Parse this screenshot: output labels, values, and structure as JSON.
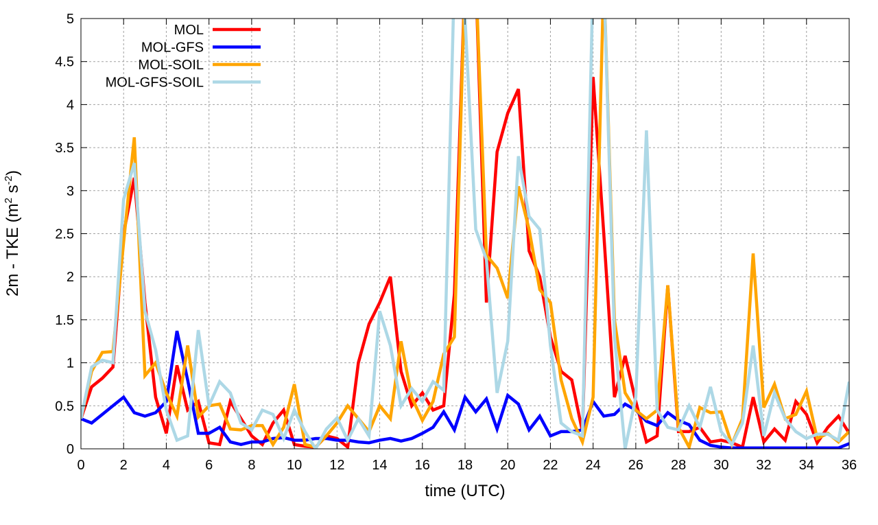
{
  "chart_data": {
    "type": "line",
    "title": "",
    "xlabel": "time (UTC)",
    "ylabel_main": "2m - TKE (m",
    "ylabel_sup1": "2",
    "ylabel_mid": " s",
    "ylabel_sup2": "-2",
    "ylabel_end": ")",
    "xlim": [
      0,
      36
    ],
    "ylim": [
      0,
      5
    ],
    "xticks": [
      0,
      2,
      4,
      6,
      8,
      10,
      12,
      14,
      16,
      18,
      20,
      22,
      24,
      26,
      28,
      30,
      32,
      34,
      36
    ],
    "xtick_labels": [
      "0",
      "2",
      "4",
      "6",
      "8",
      "10",
      "12",
      "14",
      "16",
      "18",
      "20",
      "22",
      "24",
      "26",
      "28",
      "30",
      "32",
      "34",
      "36"
    ],
    "yticks": [
      0,
      0.5,
      1,
      1.5,
      2,
      2.5,
      3,
      3.5,
      4,
      4.5,
      5
    ],
    "ytick_labels": [
      "0",
      "0.5",
      "1",
      "1.5",
      "2",
      "2.5",
      "3",
      "3.5",
      "4",
      "4.5",
      "5"
    ],
    "grid": true,
    "legend_position": "top-left",
    "x_step": 0.5,
    "series": [
      {
        "name": "MOL",
        "color": "#ff0000",
        "values": [
          0.35,
          0.72,
          0.82,
          0.95,
          2.5,
          3.15,
          1.7,
          0.6,
          0.18,
          0.97,
          0.45,
          0.55,
          0.07,
          0.05,
          0.55,
          0.35,
          0.15,
          0.05,
          0.3,
          0.45,
          0.05,
          0.03,
          0.02,
          0.15,
          0.12,
          0.02,
          1.0,
          1.45,
          1.7,
          2.0,
          0.9,
          0.5,
          0.65,
          0.45,
          0.5,
          1.8,
          5.5,
          5.5,
          1.7,
          3.45,
          3.9,
          4.18,
          2.3,
          2.0,
          1.3,
          0.9,
          0.8,
          0.2,
          4.32,
          2.5,
          0.6,
          1.08,
          0.55,
          0.08,
          0.15,
          1.9,
          0.2,
          0.2,
          0.25,
          0.08,
          0.1,
          0.07,
          0.02,
          0.6,
          0.08,
          0.23,
          0.1,
          0.55,
          0.4,
          0.07,
          0.25,
          0.38,
          0.18
        ]
      },
      {
        "name": "MOL-GFS",
        "color": "#0000ff",
        "values": [
          0.35,
          0.3,
          0.4,
          0.5,
          0.6,
          0.42,
          0.38,
          0.42,
          0.55,
          1.37,
          0.8,
          0.18,
          0.18,
          0.25,
          0.08,
          0.05,
          0.08,
          0.08,
          0.12,
          0.13,
          0.1,
          0.1,
          0.12,
          0.12,
          0.1,
          0.1,
          0.08,
          0.07,
          0.1,
          0.12,
          0.09,
          0.12,
          0.18,
          0.25,
          0.43,
          0.22,
          0.6,
          0.43,
          0.58,
          0.23,
          0.62,
          0.52,
          0.22,
          0.38,
          0.15,
          0.2,
          0.2,
          0.22,
          0.55,
          0.38,
          0.4,
          0.52,
          0.45,
          0.32,
          0.27,
          0.42,
          0.33,
          0.28,
          0.1,
          0.04,
          0.02,
          0.01,
          0.01,
          0.01,
          0.01,
          0.01,
          0.01,
          0.01,
          0.01,
          0.01,
          0.01,
          0.01,
          0.06
        ]
      },
      {
        "name": "MOL-SOIL",
        "color": "#ffa500",
        "values": [
          0.35,
          0.9,
          1.12,
          1.13,
          2.4,
          3.62,
          0.85,
          1.0,
          0.65,
          0.38,
          1.2,
          0.37,
          0.5,
          0.52,
          0.23,
          0.22,
          0.27,
          0.27,
          0.05,
          0.25,
          0.75,
          0.05,
          0.02,
          0.15,
          0.3,
          0.5,
          0.35,
          0.2,
          0.5,
          0.35,
          1.25,
          0.6,
          0.33,
          0.55,
          1.1,
          1.3,
          5.5,
          5.5,
          2.25,
          2.1,
          1.75,
          3.05,
          2.55,
          1.85,
          1.7,
          0.8,
          0.35,
          0.08,
          0.6,
          5.5,
          1.5,
          0.65,
          0.45,
          0.35,
          0.45,
          1.9,
          0.25,
          0.02,
          0.48,
          0.42,
          0.43,
          0.05,
          0.35,
          2.27,
          0.48,
          0.75,
          0.35,
          0.4,
          0.67,
          0.12,
          0.18,
          0.08,
          0.2
        ]
      },
      {
        "name": "MOL-GFS-SOIL",
        "color": "#add8e6",
        "values": [
          0.35,
          0.95,
          1.03,
          1.0,
          2.9,
          3.32,
          1.6,
          1.15,
          0.45,
          0.1,
          0.15,
          1.38,
          0.5,
          0.78,
          0.65,
          0.3,
          0.22,
          0.45,
          0.4,
          0.12,
          0.45,
          0.2,
          0.0,
          0.23,
          0.36,
          0.1,
          0.35,
          0.15,
          1.6,
          1.2,
          0.5,
          0.7,
          0.55,
          0.78,
          0.68,
          5.5,
          5.0,
          2.55,
          2.2,
          0.65,
          1.25,
          3.4,
          2.7,
          2.55,
          1.2,
          0.3,
          0.2,
          0.15,
          5.5,
          5.5,
          1.3,
          0.0,
          0.6,
          3.7,
          0.45,
          0.25,
          0.22,
          0.5,
          0.25,
          0.72,
          0.2,
          0.05,
          0.3,
          1.2,
          0.15,
          0.65,
          0.35,
          0.2,
          0.12,
          0.17,
          0.17,
          0.1,
          0.78
        ]
      }
    ]
  }
}
